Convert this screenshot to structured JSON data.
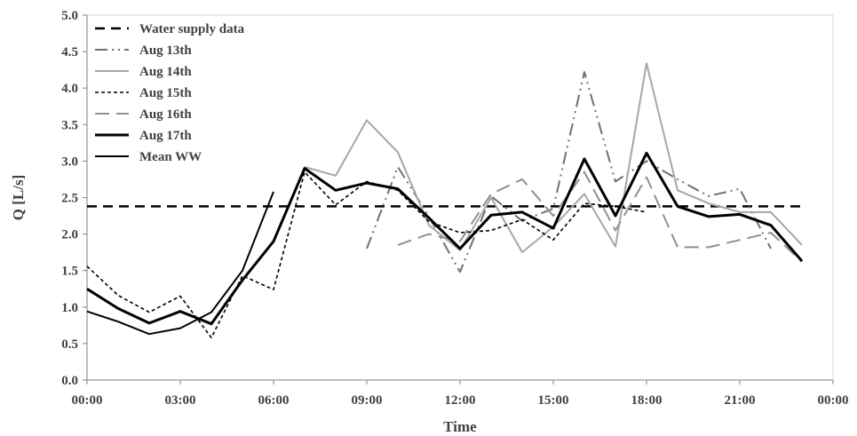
{
  "chart_data": {
    "type": "line",
    "title": "",
    "xlabel": "Time",
    "ylabel": "Q [L/s]",
    "xlim": [
      0,
      24
    ],
    "ylim": [
      0,
      5
    ],
    "x_ticks": [
      {
        "value": 0,
        "label": "00:00"
      },
      {
        "value": 3,
        "label": "03:00"
      },
      {
        "value": 6,
        "label": "06:00"
      },
      {
        "value": 9,
        "label": "09:00"
      },
      {
        "value": 12,
        "label": "12:00"
      },
      {
        "value": 15,
        "label": "15:00"
      },
      {
        "value": 18,
        "label": "18:00"
      },
      {
        "value": 21,
        "label": "21:00"
      },
      {
        "value": 24,
        "label": "00:00"
      }
    ],
    "y_ticks": [
      {
        "value": 0,
        "label": "0.0"
      },
      {
        "value": 0.5,
        "label": "0.5"
      },
      {
        "value": 1,
        "label": "1.0"
      },
      {
        "value": 1.5,
        "label": "1.5"
      },
      {
        "value": 2,
        "label": "2.0"
      },
      {
        "value": 2.5,
        "label": "2.5"
      },
      {
        "value": 3,
        "label": "3.0"
      },
      {
        "value": 3.5,
        "label": "3.5"
      },
      {
        "value": 4,
        "label": "4.0"
      },
      {
        "value": 4.5,
        "label": "4.5"
      },
      {
        "value": 5,
        "label": "5.0"
      }
    ],
    "grid": false,
    "legend_position": "top-left",
    "series": [
      {
        "name": "Water supply data",
        "color": "#000000",
        "style": "dash",
        "x": [
          0,
          23
        ],
        "y": [
          2.38,
          2.38
        ]
      },
      {
        "name": "Aug 13th",
        "color": "#707070",
        "style": "dashdotdot",
        "x": [
          9,
          10,
          11,
          12,
          13,
          14,
          15,
          16,
          17,
          18,
          19,
          20,
          21,
          22
        ],
        "y": [
          1.8,
          2.92,
          2.24,
          1.48,
          2.52,
          2.18,
          2.35,
          4.22,
          2.72,
          3.0,
          2.75,
          2.52,
          2.62,
          1.8
        ]
      },
      {
        "name": "Aug 14th",
        "color": "#a6a6a6",
        "style": "solid",
        "x": [
          7,
          8,
          9,
          10,
          11,
          12,
          13,
          14,
          15,
          16,
          17,
          18,
          19,
          20,
          21,
          22,
          23
        ],
        "y": [
          2.92,
          2.8,
          3.56,
          3.12,
          2.12,
          1.78,
          2.5,
          1.75,
          2.1,
          2.55,
          1.83,
          4.34,
          2.6,
          2.42,
          2.3,
          2.3,
          1.85
        ]
      },
      {
        "name": "Aug 15th",
        "color": "#000000",
        "style": "shortdash",
        "x": [
          0,
          1,
          2,
          3,
          4,
          5,
          6,
          7,
          8,
          9,
          10,
          11,
          12,
          13,
          14,
          15,
          16,
          17,
          18
        ],
        "y": [
          1.56,
          1.16,
          0.93,
          1.15,
          0.58,
          1.43,
          1.24,
          2.85,
          2.4,
          2.72,
          2.6,
          2.17,
          2.02,
          2.05,
          2.2,
          1.92,
          2.42,
          2.38,
          2.3
        ]
      },
      {
        "name": "Aug 16th",
        "color": "#909090",
        "style": "longdash",
        "x": [
          10,
          11,
          12,
          13,
          14,
          15,
          16,
          17,
          18,
          19,
          20,
          21,
          22,
          23
        ],
        "y": [
          1.85,
          2.0,
          1.9,
          2.55,
          2.75,
          2.25,
          2.85,
          2.05,
          2.78,
          1.82,
          1.82,
          1.92,
          2.02,
          1.62
        ]
      },
      {
        "name": "Aug 17th",
        "color": "#000000",
        "style": "solid-thick",
        "x": [
          0,
          1,
          2,
          3,
          4,
          5,
          6,
          7,
          8,
          9,
          10,
          11,
          12,
          13,
          14,
          15,
          16,
          17,
          18,
          19,
          20,
          21,
          22,
          23
        ],
        "y": [
          1.25,
          0.98,
          0.78,
          0.94,
          0.77,
          1.37,
          1.9,
          2.9,
          2.6,
          2.7,
          2.62,
          2.22,
          1.8,
          2.26,
          2.3,
          2.08,
          3.03,
          2.25,
          3.11,
          2.38,
          2.24,
          2.27,
          2.12,
          1.63
        ]
      },
      {
        "name": "Mean WW",
        "color": "#000000",
        "style": "solid",
        "x": [
          0,
          1,
          2,
          3,
          4,
          5,
          6
        ],
        "y": [
          0.94,
          0.8,
          0.63,
          0.71,
          0.93,
          1.5,
          2.58
        ]
      }
    ]
  }
}
